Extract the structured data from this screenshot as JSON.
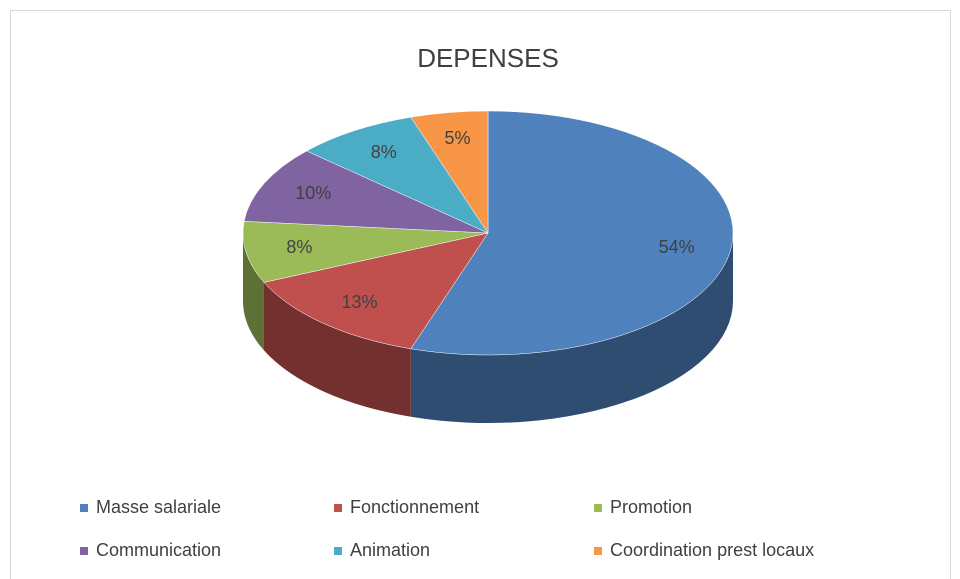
{
  "chart_data": {
    "type": "pie",
    "title": "DEPENSES",
    "categories": [
      "Masse salariale",
      "Fonctionnement",
      "Promotion",
      "Communication",
      "Animation",
      "Coordination prest locaux"
    ],
    "values": [
      54,
      13,
      8,
      10,
      8,
      5
    ],
    "value_labels": [
      "54%",
      "13%",
      "8%",
      "10%",
      "8%",
      "5%"
    ],
    "colors": [
      "#4f81bd",
      "#c0504d",
      "#9bbb59",
      "#8064a2",
      "#4bacc6",
      "#f79646"
    ],
    "legend": "bottom"
  }
}
